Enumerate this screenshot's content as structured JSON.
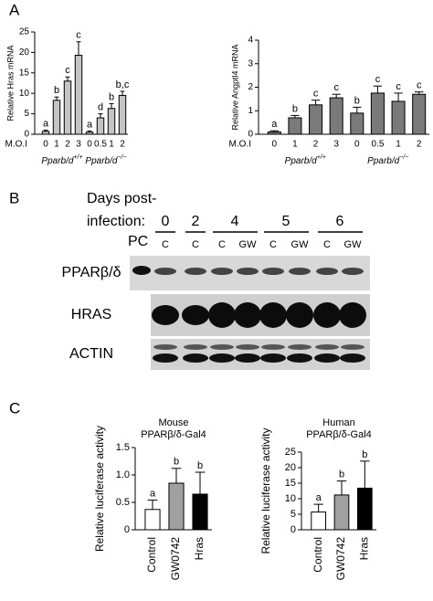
{
  "panels": [
    "A",
    "B",
    "C"
  ],
  "chart_data": [
    {
      "type": "bar",
      "y_label": "Relative Hras mRNA",
      "x_label": "M.O.I",
      "categories": [
        "0",
        "1",
        "2",
        "3",
        "0",
        "0.5",
        "1",
        "2"
      ],
      "groups": [
        {
          "label": "Pparb/d",
          "superscript": "+/+"
        },
        {
          "label": "Pparb/d",
          "superscript": "−/−"
        }
      ],
      "values": [
        0.7,
        8.3,
        13,
        19.3,
        0.5,
        4,
        6.3,
        9.5
      ],
      "errors": [
        0.3,
        0.8,
        1,
        3.3,
        0.3,
        1,
        1.2,
        1
      ],
      "annotations": [
        "a",
        "b",
        "c",
        "c",
        "a",
        "d",
        "b",
        "b,c"
      ],
      "colors": [
        "#c4c4c4",
        "#c4c4c4",
        "#c4c4c4",
        "#c4c4c4",
        "#c4c4c4",
        "#c4c4c4",
        "#c4c4c4",
        "#c4c4c4"
      ],
      "ylim": [
        0,
        25
      ],
      "yticks": [
        0,
        5,
        10,
        15,
        20,
        25
      ]
    },
    {
      "type": "bar",
      "y_label": "Relative Angptl4 mRNA",
      "x_label": "M.O.I",
      "categories": [
        "0",
        "1",
        "2",
        "3",
        "0",
        "0.5",
        "1",
        "2"
      ],
      "groups": [
        {
          "label": "Pparb/d",
          "superscript": "+/+"
        },
        {
          "label": "Pparb/d",
          "superscript": "−/−"
        }
      ],
      "values": [
        0.1,
        0.7,
        1.25,
        1.55,
        0.9,
        1.75,
        1.4,
        1.7
      ],
      "errors": [
        0.05,
        0.1,
        0.2,
        0.15,
        0.25,
        0.3,
        0.35,
        0.1
      ],
      "annotations": [
        "a",
        "b",
        "c",
        "c",
        "b",
        "c",
        "c",
        "c"
      ],
      "colors": [
        "#7a7a7a",
        "#7a7a7a",
        "#7a7a7a",
        "#7a7a7a",
        "#7a7a7a",
        "#7a7a7a",
        "#7a7a7a",
        "#7a7a7a"
      ],
      "ylim": [
        0,
        4
      ],
      "yticks": [
        0,
        1,
        2,
        3,
        4
      ]
    },
    {
      "type": "bar",
      "title": [
        "Mouse",
        "PPARβ/δ-Gal4"
      ],
      "y_label": "Relative luciferase activity",
      "categories": [
        "Control",
        "GW0742",
        "Hras"
      ],
      "values": [
        0.37,
        0.85,
        0.65
      ],
      "errors": [
        0.17,
        0.27,
        0.4
      ],
      "annotations": [
        "a",
        "b",
        "b"
      ],
      "colors": [
        "#ffffff",
        "#a0a0a0",
        "#000000"
      ],
      "ylim": [
        0,
        1.5
      ],
      "yticks": [
        0,
        0.5,
        {
          "value": 1,
          "label": "1.0"
        },
        1.5
      ]
    },
    {
      "type": "bar",
      "title": [
        "Human",
        "PPARβ/δ-Gal4"
      ],
      "y_label": "Relative luciferase activity",
      "categories": [
        "Control",
        "GW0742",
        "Hras"
      ],
      "values": [
        5.7,
        11.2,
        13.4
      ],
      "errors": [
        2.5,
        4.5,
        8.7
      ],
      "annotations": [
        "a",
        "b",
        "b"
      ],
      "colors": [
        "#ffffff",
        "#a0a0a0",
        "#000000"
      ],
      "ylim": [
        0,
        25
      ],
      "yticks": [
        0,
        5,
        10,
        15,
        20,
        25
      ]
    }
  ],
  "blot": {
    "heading": [
      "Days post-",
      "infection:"
    ],
    "days": [
      "0",
      "2",
      "4",
      "5",
      "6"
    ],
    "pc": "PC",
    "conditions": [
      "C",
      "C",
      "C",
      "GW",
      "C",
      "GW",
      "C",
      "GW"
    ],
    "rows": [
      "PPARβ/δ",
      "HRAS",
      "ACTIN"
    ]
  }
}
